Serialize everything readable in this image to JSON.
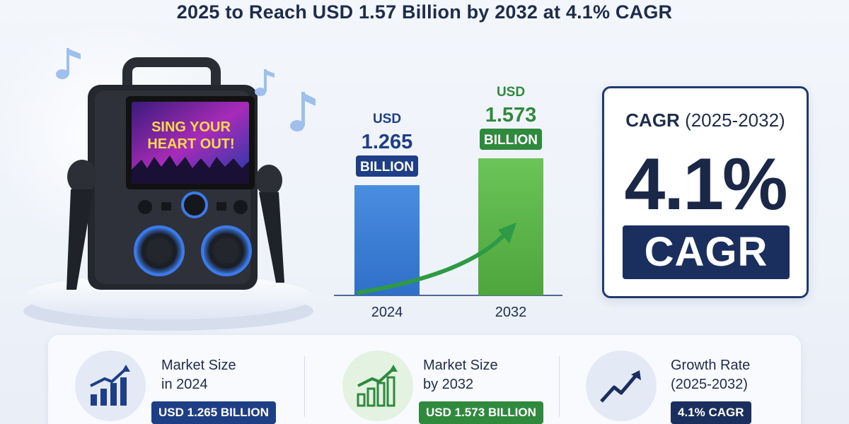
{
  "title": "2025 to Reach USD 1.57 Billion by 2032 at 4.1% CAGR",
  "illustration": {
    "screen_text_line1": "SING YOUR",
    "screen_text_line2": "HEART OUT!"
  },
  "chart_data": {
    "type": "bar",
    "categories": [
      "2024",
      "2032"
    ],
    "values": [
      1.265,
      1.573
    ],
    "value_prefix": "USD",
    "value_unit": "BILLION",
    "value_labels": [
      "1.265",
      "1.573"
    ],
    "bar_colors": [
      "#3f7fd6",
      "#5cb347"
    ],
    "ylim": [
      0,
      1.8
    ],
    "trend_arrow_color": "#2e9a45"
  },
  "cagr_card": {
    "heading_bold": "CAGR",
    "heading_years": "(2025-2032)",
    "value": "4.1%",
    "badge": "CAGR"
  },
  "stats": [
    {
      "icon": "bar-chart-up-icon",
      "label_line1": "Market Size",
      "label_line2": "in 2024",
      "pill": "USD 1.265 BILLION",
      "pill_color": "#1e3f85"
    },
    {
      "icon": "bar-chart-growth-icon",
      "label_line1": "Market Size",
      "label_line2": "by 2032",
      "pill": "USD 1.573 BILLION",
      "pill_color": "#2f8a3e"
    },
    {
      "icon": "trend-up-icon",
      "label_line1": "Growth Rate",
      "label_line2": "(2025-2032)",
      "pill": "4.1% CAGR",
      "pill_color": "#1a2f5e"
    }
  ]
}
